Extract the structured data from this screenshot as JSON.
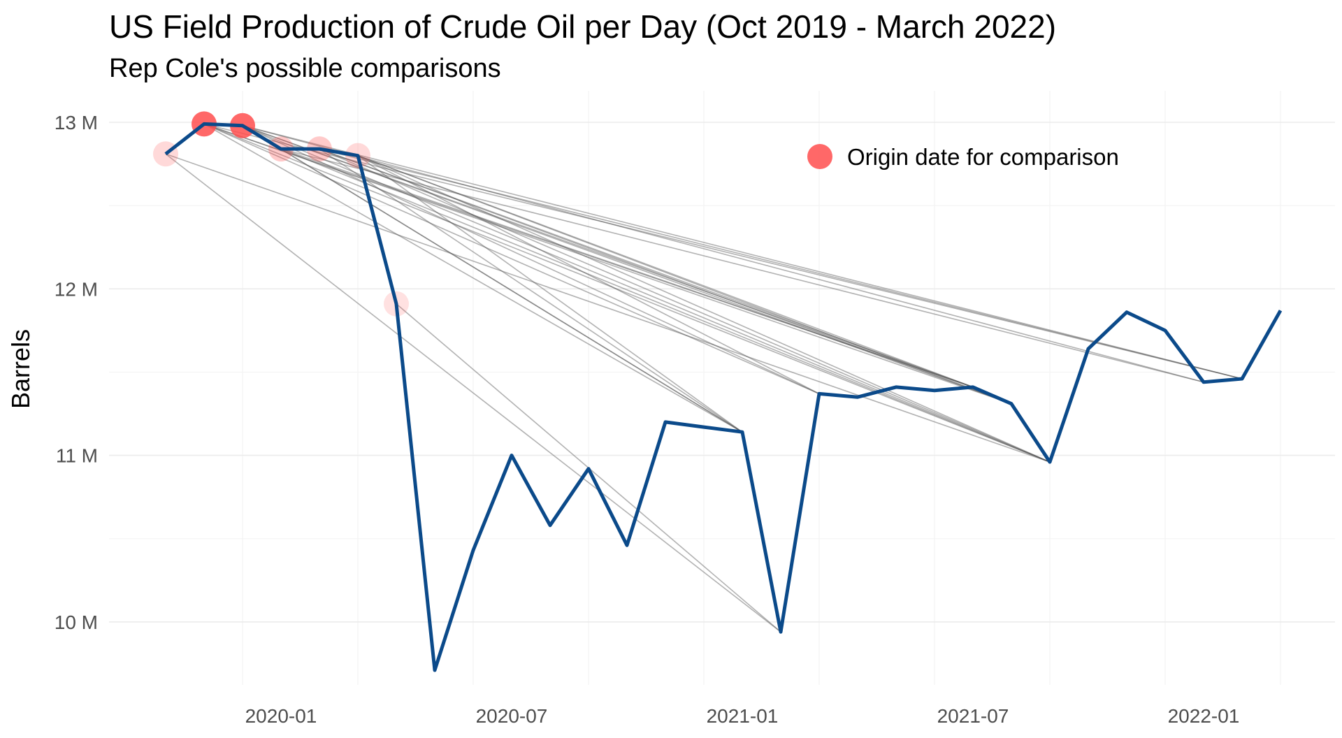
{
  "chart_data": {
    "type": "line",
    "title": "US Field Production of Crude Oil per Day (Oct 2019 - March 2022)",
    "subtitle": "Rep Cole's possible comparisons",
    "xlabel": "",
    "ylabel": "Barrels",
    "x_tick_labels": [
      "2020-01",
      "2020-07",
      "2021-01",
      "2021-07",
      "2022-01"
    ],
    "y_tick_labels": [
      "10 M",
      "11 M",
      "12 M",
      "13 M"
    ],
    "y_ticks": [
      10,
      11,
      12,
      13
    ],
    "y_unit": "million barrels",
    "grid": true,
    "legend_position": "top-right",
    "legend": {
      "origin_label": "Origin date for comparison"
    },
    "colors": {
      "series": "#0b4a8a",
      "origin": "#ff4d4d",
      "comparison": "#555555"
    },
    "x": [
      "2019-10",
      "2019-11",
      "2019-12",
      "2020-01",
      "2020-02",
      "2020-03",
      "2020-04",
      "2020-05",
      "2020-06",
      "2020-07",
      "2020-08",
      "2020-09",
      "2020-10",
      "2020-11",
      "2020-12",
      "2021-01",
      "2021-02",
      "2021-03",
      "2021-04",
      "2021-05",
      "2021-06",
      "2021-07",
      "2021-08",
      "2021-09",
      "2021-10",
      "2021-11",
      "2021-12",
      "2022-01",
      "2022-02",
      "2022-03"
    ],
    "series": [
      {
        "values": [
          12.81,
          12.99,
          12.98,
          12.84,
          12.84,
          12.8,
          11.91,
          9.71,
          10.43,
          11.0,
          10.58,
          10.92,
          10.46,
          11.2,
          11.17,
          11.14,
          9.94,
          11.37,
          11.35,
          11.41,
          11.39,
          11.41,
          11.31,
          10.96,
          11.64,
          11.86,
          11.75,
          11.44,
          11.46,
          11.87
        ]
      }
    ],
    "origin_points": [
      {
        "date": "2019-10",
        "strength": 0.25
      },
      {
        "date": "2019-11",
        "strength": 1.0
      },
      {
        "date": "2019-12",
        "strength": 1.0
      },
      {
        "date": "2020-01",
        "strength": 0.35
      },
      {
        "date": "2020-02",
        "strength": 0.35
      },
      {
        "date": "2020-03",
        "strength": 0.25
      },
      {
        "date": "2020-04",
        "strength": 0.2
      }
    ],
    "comparisons": [
      {
        "from": "2019-10",
        "to": "2021-02"
      },
      {
        "from": "2019-10",
        "to": "2021-09"
      },
      {
        "from": "2019-11",
        "to": "2021-01"
      },
      {
        "from": "2019-11",
        "to": "2021-03"
      },
      {
        "from": "2019-11",
        "to": "2021-07"
      },
      {
        "from": "2019-11",
        "to": "2021-08"
      },
      {
        "from": "2019-11",
        "to": "2021-09"
      },
      {
        "from": "2019-11",
        "to": "2022-02"
      },
      {
        "from": "2019-12",
        "to": "2021-01"
      },
      {
        "from": "2019-12",
        "to": "2021-03"
      },
      {
        "from": "2019-12",
        "to": "2021-07"
      },
      {
        "from": "2019-12",
        "to": "2021-08"
      },
      {
        "from": "2019-12",
        "to": "2021-09"
      },
      {
        "from": "2019-12",
        "to": "2022-01"
      },
      {
        "from": "2019-12",
        "to": "2022-02"
      },
      {
        "from": "2020-01",
        "to": "2021-01"
      },
      {
        "from": "2020-01",
        "to": "2021-07"
      },
      {
        "from": "2020-01",
        "to": "2021-09"
      },
      {
        "from": "2020-01",
        "to": "2022-01"
      },
      {
        "from": "2020-02",
        "to": "2021-01"
      },
      {
        "from": "2020-02",
        "to": "2021-07"
      },
      {
        "from": "2020-02",
        "to": "2021-08"
      },
      {
        "from": "2020-02",
        "to": "2021-09"
      },
      {
        "from": "2020-02",
        "to": "2022-02"
      },
      {
        "from": "2020-03",
        "to": "2021-01"
      },
      {
        "from": "2020-03",
        "to": "2021-03"
      },
      {
        "from": "2020-03",
        "to": "2021-07"
      },
      {
        "from": "2020-03",
        "to": "2021-08"
      },
      {
        "from": "2020-03",
        "to": "2021-09"
      },
      {
        "from": "2020-04",
        "to": "2021-02"
      }
    ]
  }
}
